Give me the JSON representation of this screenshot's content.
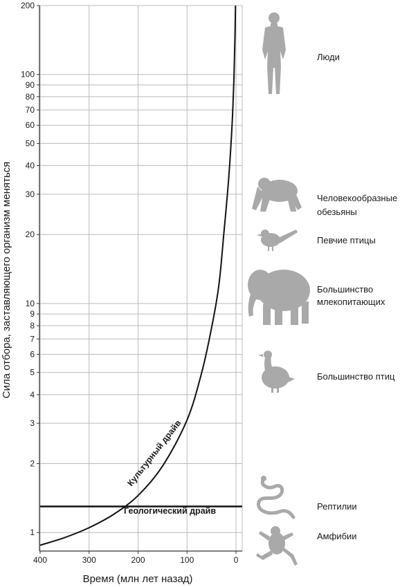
{
  "chart_data": {
    "type": "line",
    "xlabel": "Время (млн лет назад)",
    "ylabel": "Сила отбора, заставляющего организм меняться",
    "x_ticks": [
      400,
      300,
      200,
      100,
      0
    ],
    "y_ticks": [
      1,
      2,
      3,
      4,
      5,
      6,
      7,
      8,
      9,
      10,
      20,
      30,
      40,
      50,
      60,
      70,
      80,
      90,
      100,
      200
    ],
    "x_range": [
      400,
      0
    ],
    "y_range": [
      0.83,
      200
    ],
    "y_scale": "log",
    "x_reversed": true,
    "grid": true,
    "series": [
      {
        "name": "Культурный драйв",
        "x": [
          400,
          350,
          300,
          250,
          200,
          150,
          100,
          70,
          50,
          35,
          25,
          15,
          8,
          4,
          2,
          1
        ],
        "y": [
          0.88,
          0.95,
          1.05,
          1.2,
          1.45,
          1.95,
          3.1,
          5.0,
          7.8,
          12,
          20,
          35,
          60,
          100,
          150,
          200
        ]
      },
      {
        "name": "Геологический драйв",
        "x": [
          400,
          0
        ],
        "y": [
          1.3,
          1.3
        ]
      }
    ],
    "annotations": [
      {
        "label": "Люди",
        "icon": "human-icon"
      },
      {
        "label": "Человекообразные обезьяны",
        "icon": "ape-icon"
      },
      {
        "label": "Певчие птицы",
        "icon": "songbird-icon"
      },
      {
        "label": "Большинство млекопитающих",
        "icon": "elephant-icon"
      },
      {
        "label": "Большинство птиц",
        "icon": "goose-icon"
      },
      {
        "label": "Рептилии",
        "icon": "snake-icon"
      },
      {
        "label": "Амфибии",
        "icon": "frog-icon"
      }
    ],
    "colors": {
      "line": "#111111",
      "grid": "#bbbbbb",
      "silhouette": "#a9a9a9"
    }
  },
  "groups": [
    {
      "label_lines": [
        "Люди"
      ],
      "icon": "human-icon"
    },
    {
      "label_lines": [
        "Человекообразные",
        "обезьяны"
      ],
      "icon": "ape-icon"
    },
    {
      "label_lines": [
        "Певчие птицы"
      ],
      "icon": "songbird-icon"
    },
    {
      "label_lines": [
        "Большинство",
        "млекопитающих"
      ],
      "icon": "elephant-icon"
    },
    {
      "label_lines": [
        "Большинство птиц"
      ],
      "icon": "goose-icon"
    },
    {
      "label_lines": [
        "Рептилии"
      ],
      "icon": "snake-icon"
    },
    {
      "label_lines": [
        "Амфибии"
      ],
      "icon": "frog-icon"
    }
  ]
}
